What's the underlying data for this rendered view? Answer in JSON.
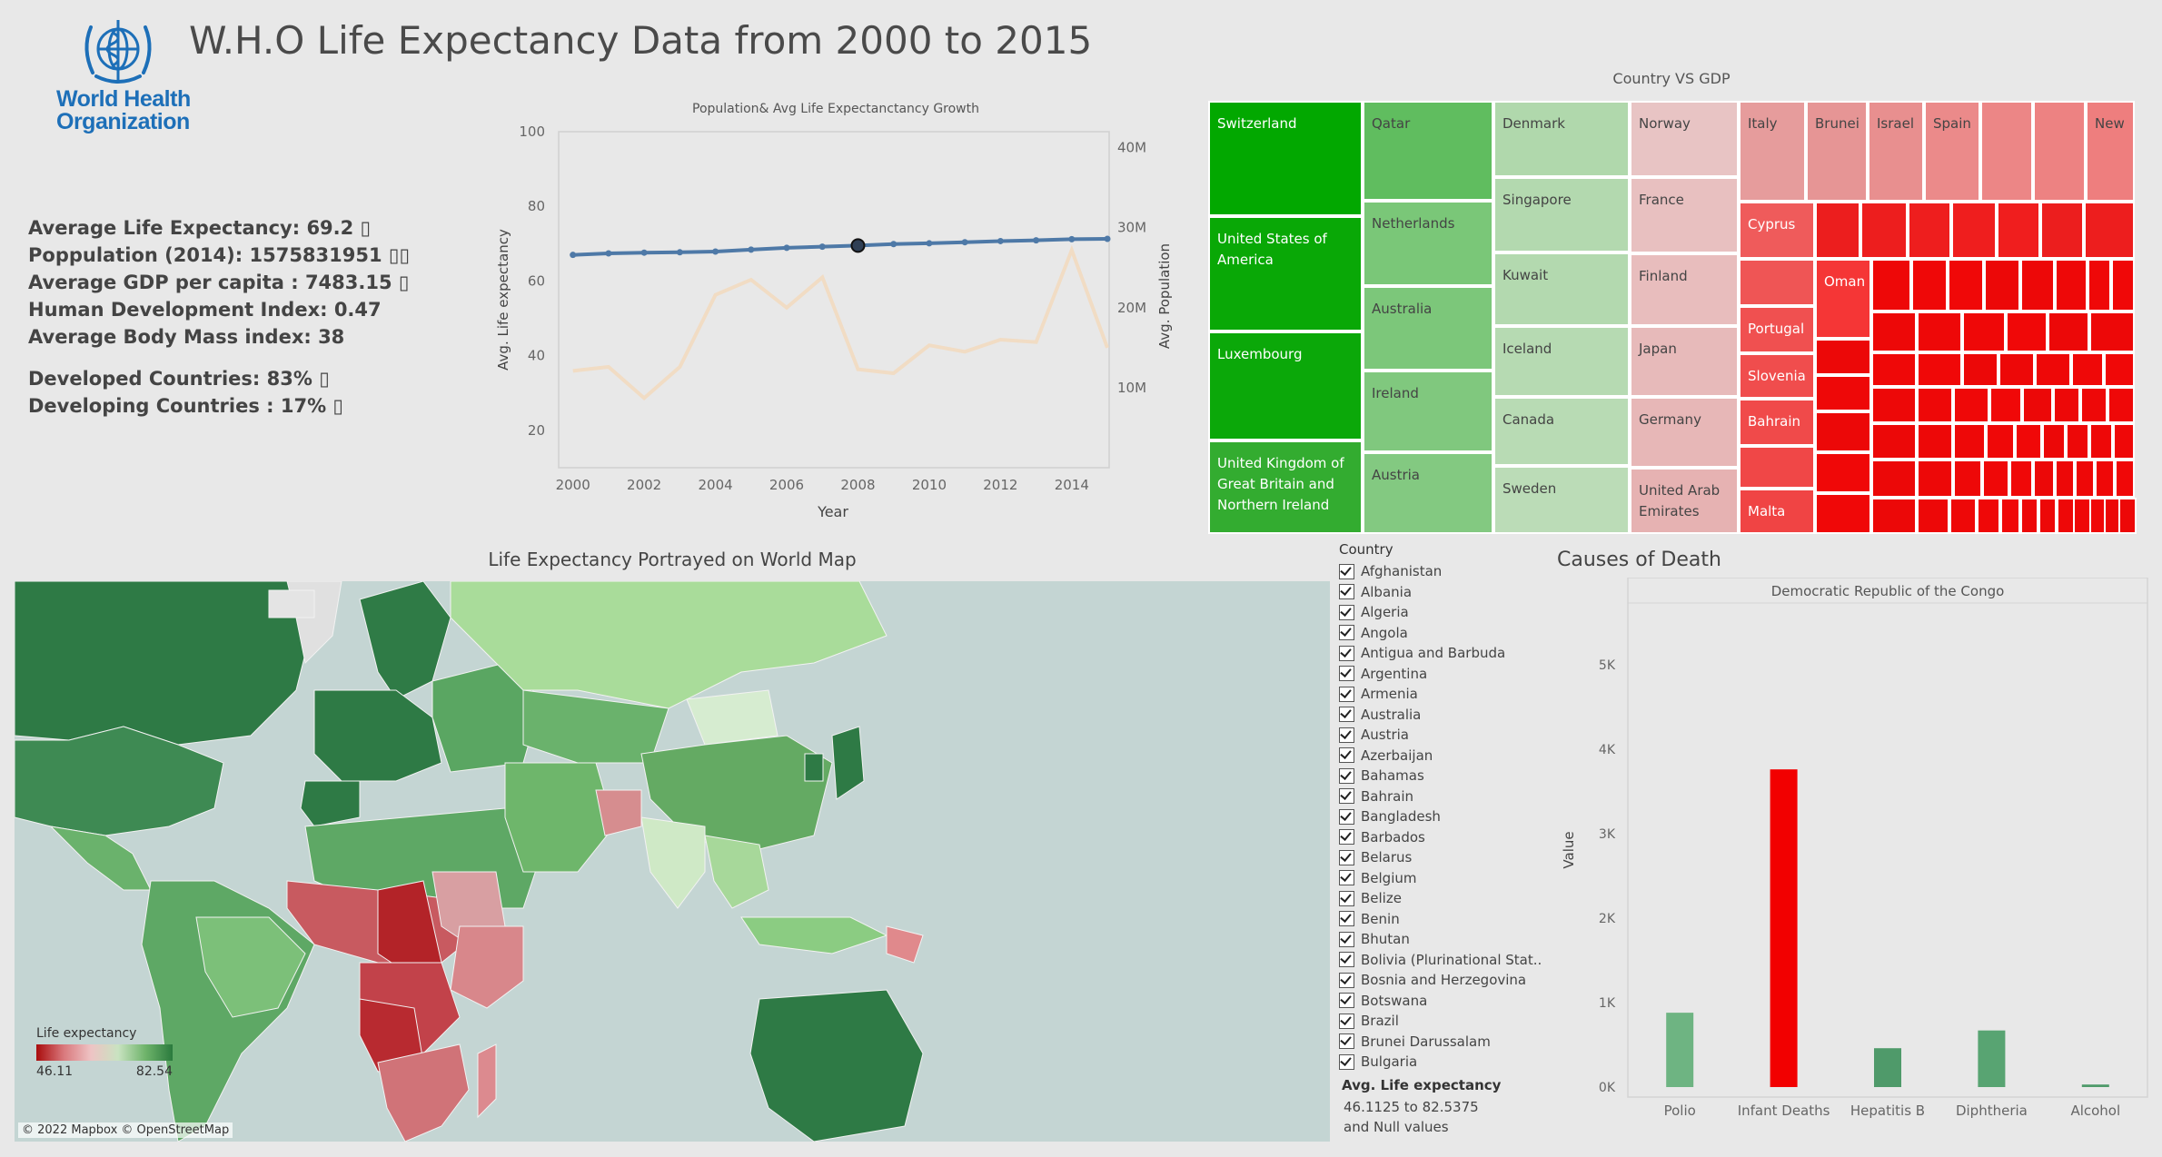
{
  "header": {
    "title": "W.H.O Life Expectancy Data from 2000 to 2015",
    "logo_lines": [
      "World Health",
      "Organization"
    ]
  },
  "stats": {
    "avg_life": "Average Life Expectancy: 69.2 ▯",
    "population": "Poppulation (2014): 1575831951 ▯▯",
    "gdp": "Average GDP per capita : 7483.15 ▯",
    "hdi": "Human Development Index: 0.47",
    "bmi": "Average Body Mass index: 38",
    "developed": "Developed Countries:  83% ▯",
    "developing": "Developing Countries : 17% ▯"
  },
  "line_chart": {
    "title": "Population& Avg Life Expectanctancy Growth",
    "xlabel": "Year",
    "ylabel_left": "Avg. Life expectancy",
    "ylabel_right": "Avg. Population",
    "yticks_left": [
      "20",
      "40",
      "60",
      "80",
      "100"
    ],
    "yticks_right": [
      "10M",
      "20M",
      "30M",
      "40M"
    ],
    "xticks": [
      "2000",
      "2002",
      "2004",
      "2006",
      "2008",
      "2010",
      "2012",
      "2014"
    ]
  },
  "chart_data": [
    {
      "type": "line",
      "title": "Population& Avg Life Expectanctancy Growth",
      "xlabel": "Year",
      "x": [
        2000,
        2001,
        2002,
        2003,
        2004,
        2005,
        2006,
        2007,
        2008,
        2009,
        2010,
        2011,
        2012,
        2013,
        2014,
        2015
      ],
      "series": [
        {
          "name": "Avg. Life expectancy",
          "axis": "left",
          "color": "#4e79a7",
          "values": [
            67.0,
            67.4,
            67.6,
            67.7,
            67.9,
            68.4,
            68.9,
            69.2,
            69.5,
            69.9,
            70.1,
            70.4,
            70.7,
            70.9,
            71.2,
            71.3
          ]
        },
        {
          "name": "Avg. Population",
          "axis": "right",
          "color": "#f1dcc4",
          "values": [
            12.1,
            12.6,
            8.7,
            12.6,
            21.6,
            23.5,
            20.0,
            23.8,
            12.3,
            11.8,
            15.3,
            14.5,
            16.0,
            15.7,
            27.2,
            15.0
          ]
        }
      ],
      "ylim_left": [
        10,
        100
      ],
      "ylim_right": [
        0,
        42
      ],
      "highlight_year": 2008
    },
    {
      "type": "bar",
      "title": "Causes of Death",
      "subtitle": "Democratic Republic of the Congo",
      "categories": [
        "Polio",
        "Infant Deaths",
        "Hepatitis B",
        "Diphtheria",
        "Alcohol"
      ],
      "values": [
        880,
        3760,
        460,
        670,
        30
      ],
      "colors": [
        "#6eb482",
        "#f20000",
        "#4f9a6a",
        "#58a472",
        "#4f9a6a"
      ],
      "ylabel": "Value",
      "yticks": [
        "0K",
        "1K",
        "2K",
        "3K",
        "4K",
        "5K"
      ],
      "ylim": [
        0,
        5600
      ]
    }
  ],
  "treemap": {
    "title": "Country VS GDP",
    "labels": {
      "switzerland": "Switzerland",
      "usa": "United States of America",
      "luxembourg": "Luxembourg",
      "uk": "United Kingdom of Great Britain and Northern Ireland",
      "qatar": "Qatar",
      "netherlands": "Netherlands",
      "australia": "Australia",
      "ireland": "Ireland",
      "austria": "Austria",
      "denmark": "Denmark",
      "singapore": "Singapore",
      "kuwait": "Kuwait",
      "iceland": "Iceland",
      "canada": "Canada",
      "sweden": "Sweden",
      "norway": "Norway",
      "france": "France",
      "finland": "Finland",
      "japan": "Japan",
      "germany": "Germany",
      "uae": "United Arab Emirates",
      "italy": "Italy",
      "brunei": "Brunei",
      "israel": "Israel",
      "spain": "Spain",
      "new": "New",
      "cyprus": "Cyprus",
      "oman": "Oman",
      "portugal": "Portugal",
      "slovenia": "Slovenia",
      "bahrain": "Bahrain",
      "malta": "Malta"
    }
  },
  "map": {
    "title": "Life Expectancy Portrayed on World Map",
    "legend_title": "Life expectancy",
    "legend_min": "46.11",
    "legend_max": "82.54",
    "credit": "© 2022 Mapbox © OpenStreetMap"
  },
  "filter": {
    "title": "Country",
    "countries": [
      "Afghanistan",
      "Albania",
      "Algeria",
      "Angola",
      "Antigua and Barbuda",
      "Argentina",
      "Armenia",
      "Australia",
      "Austria",
      "Azerbaijan",
      "Bahamas",
      "Bahrain",
      "Bangladesh",
      "Barbados",
      "Belarus",
      "Belgium",
      "Belize",
      "Benin",
      "Bhutan",
      "Bolivia (Plurinational Stat..",
      "Bosnia and Herzegovina",
      "Botswana",
      "Brazil",
      "Brunei Darussalam",
      "Bulgaria"
    ],
    "range_title": "Avg. Life expectancy",
    "range_value": "46.1125 to 82.5375",
    "range_null": "and Null values"
  }
}
